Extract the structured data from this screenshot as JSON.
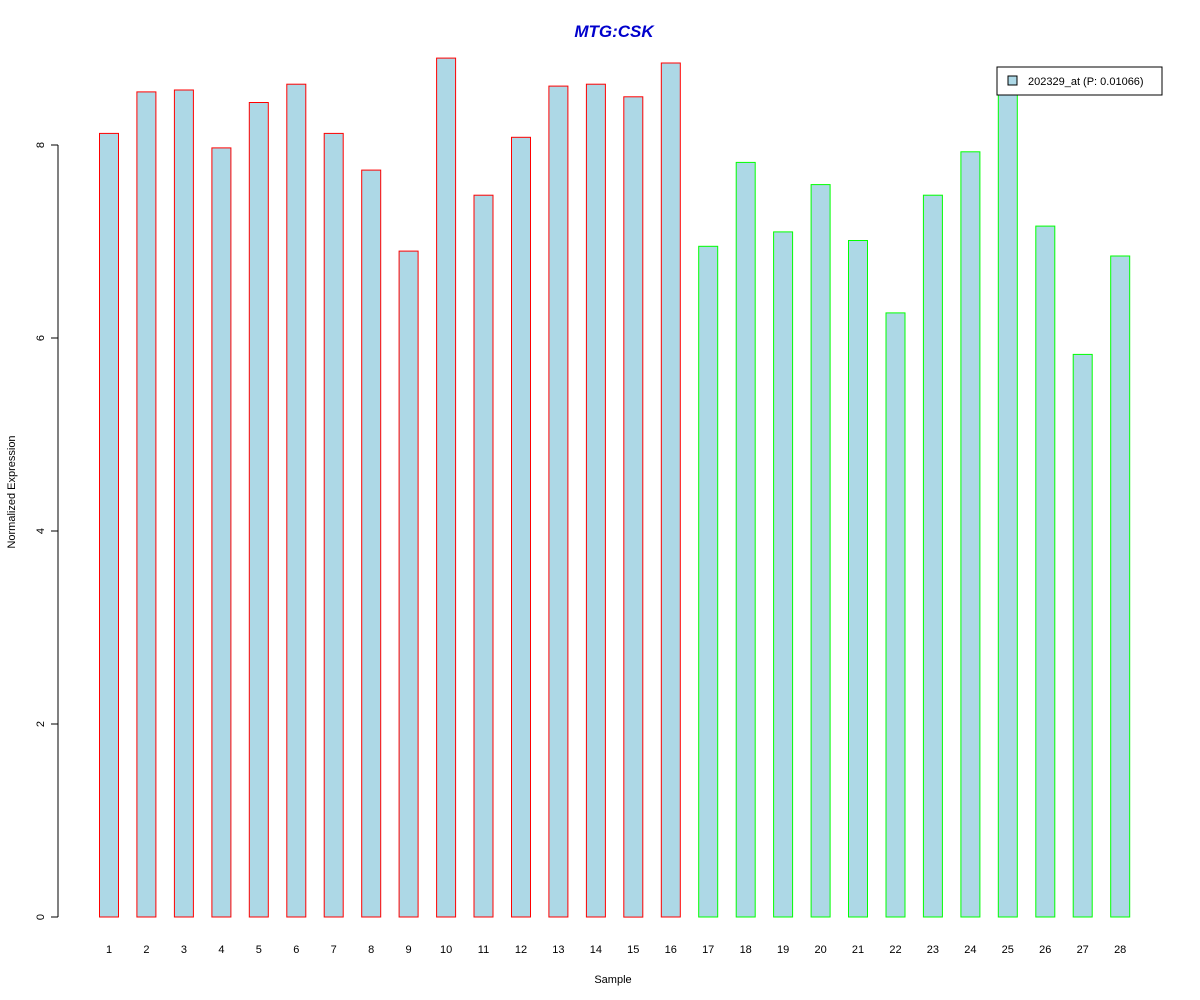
{
  "chart_data": {
    "type": "bar",
    "title": "MTG:CSK",
    "title_color": "#0000CC",
    "xlabel": "Sample",
    "ylabel": "Normalized Expression",
    "ylim": [
      0,
      8.9
    ],
    "yticks": [
      0,
      2,
      4,
      6,
      8
    ],
    "categories": [
      "1",
      "2",
      "3",
      "4",
      "5",
      "6",
      "7",
      "8",
      "9",
      "10",
      "11",
      "12",
      "13",
      "14",
      "15",
      "16",
      "17",
      "18",
      "19",
      "20",
      "21",
      "22",
      "23",
      "24",
      "25",
      "26",
      "27",
      "28"
    ],
    "values": [
      8.12,
      8.55,
      8.57,
      7.97,
      8.44,
      8.63,
      8.12,
      7.74,
      6.9,
      8.9,
      7.48,
      8.08,
      8.61,
      8.63,
      8.5,
      8.85,
      6.95,
      7.82,
      7.1,
      7.59,
      7.01,
      6.26,
      7.48,
      7.93,
      8.57,
      7.16,
      5.83,
      6.85
    ],
    "fill_color": "#ADD8E6",
    "group_border_colors": [
      "#FF0000",
      "#FF0000",
      "#FF0000",
      "#FF0000",
      "#FF0000",
      "#FF0000",
      "#FF0000",
      "#FF0000",
      "#FF0000",
      "#FF0000",
      "#FF0000",
      "#FF0000",
      "#FF0000",
      "#FF0000",
      "#FF0000",
      "#FF0000",
      "#00FF00",
      "#00FF00",
      "#00FF00",
      "#00FF00",
      "#00FF00",
      "#00FF00",
      "#00FF00",
      "#00FF00",
      "#00FF00",
      "#00FF00",
      "#00FF00",
      "#00FF00"
    ],
    "legend": {
      "position": "top-right",
      "entries": [
        {
          "label": "202329_at (P: 0.01066)",
          "color": "#ADD8E6"
        }
      ]
    },
    "grid": false
  }
}
